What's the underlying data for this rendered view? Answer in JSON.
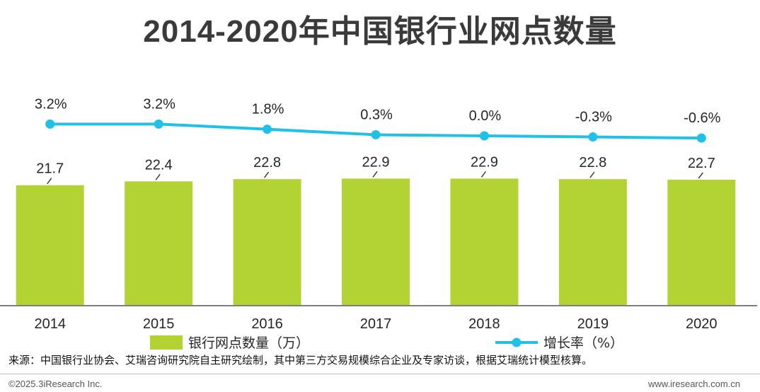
{
  "chart_data": {
    "type": "bar",
    "title": "2014-2020年中国银行业网点数量",
    "categories": [
      "2014",
      "2015",
      "2016",
      "2017",
      "2018",
      "2019",
      "2020"
    ],
    "series": [
      {
        "name": "银行网点数量（万）",
        "type": "bar",
        "values": [
          21.7,
          22.4,
          22.8,
          22.9,
          22.9,
          22.8,
          22.7
        ],
        "labels": [
          "21.7",
          "22.4",
          "22.8",
          "22.9",
          "22.9",
          "22.8",
          "22.7"
        ],
        "color": "#b3d234"
      },
      {
        "name": "增长率（%）",
        "type": "line",
        "values": [
          3.2,
          3.2,
          1.8,
          0.3,
          0.0,
          -0.3,
          -0.6
        ],
        "labels": [
          "3.2%",
          "3.2%",
          "1.8%",
          "0.3%",
          "0.0%",
          "-0.3%",
          "-0.6%"
        ],
        "color": "#1fc1e8"
      }
    ],
    "bar_axis_range": [
      0,
      23
    ],
    "line_axis_range": [
      -50,
      20
    ],
    "grid": false,
    "legend_position": "bottom"
  },
  "footer": {
    "source": "来源：中国银行业协会、艾瑞咨询研究院自主研究绘制，其中第三方交易规模综合企业及专家访谈，根据艾瑞统计模型核算。",
    "copyright": "©2025.3iResearch Inc.",
    "website": "www.iresearch.com.cn"
  }
}
